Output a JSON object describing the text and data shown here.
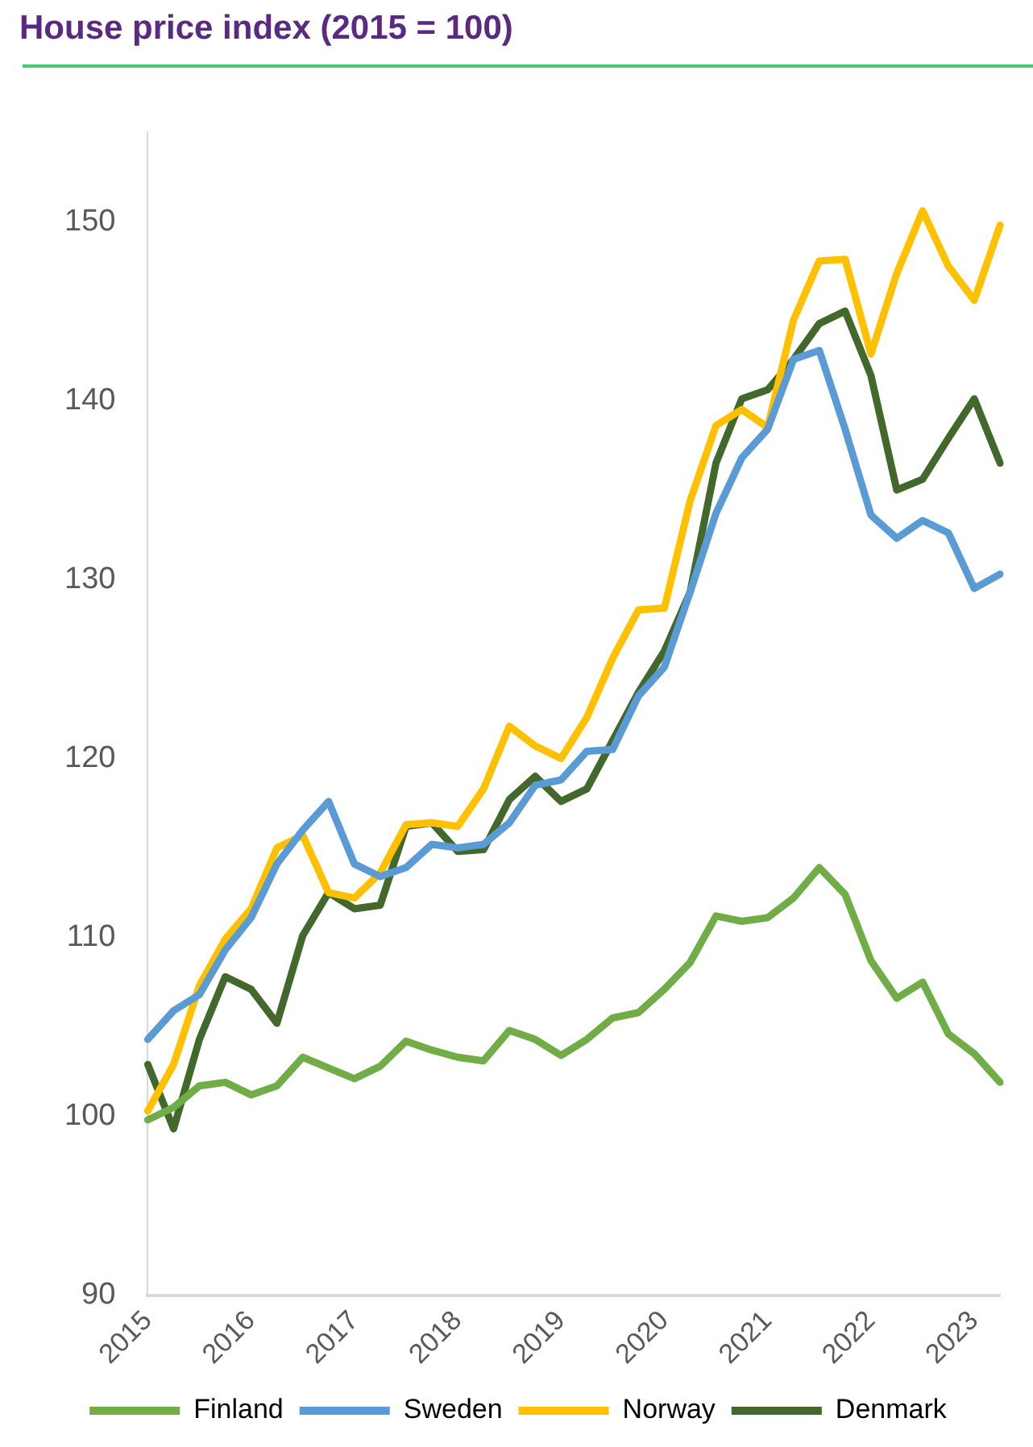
{
  "chart_data": {
    "type": "line",
    "title": "House price index (2015 = 100)",
    "categories": [
      "2015",
      null,
      null,
      null,
      "2016",
      null,
      null,
      null,
      "2017",
      null,
      null,
      null,
      "2018",
      null,
      null,
      null,
      "2019",
      null,
      null,
      null,
      "2020",
      null,
      null,
      null,
      "2021",
      null,
      null,
      null,
      "2022",
      null,
      null,
      null,
      "2023",
      null
    ],
    "series": [
      {
        "name": "Finland",
        "color": "#70ad47",
        "values": [
          99.8,
          100.5,
          101.7,
          101.9,
          101.2,
          101.7,
          103.3,
          102.7,
          102.1,
          102.8,
          104.2,
          103.7,
          103.3,
          103.1,
          104.8,
          104.3,
          103.4,
          104.3,
          105.5,
          105.8,
          107.1,
          108.6,
          111.2,
          110.9,
          111.1,
          112.2,
          113.9,
          112.4,
          108.7,
          106.6,
          107.5,
          104.6,
          103.5,
          101.9
        ]
      },
      {
        "name": "Sweden",
        "color": "#5b9bd5",
        "values": [
          104.3,
          105.9,
          106.8,
          109.3,
          111.1,
          114.1,
          116.0,
          117.6,
          114.1,
          113.4,
          113.9,
          115.2,
          115.0,
          115.2,
          116.4,
          118.5,
          118.8,
          120.4,
          120.5,
          123.5,
          125.1,
          129.3,
          133.7,
          136.8,
          138.4,
          142.3,
          142.8,
          138.4,
          133.6,
          132.3,
          133.3,
          132.6,
          129.5,
          130.3
        ]
      },
      {
        "name": "Norway",
        "color": "#ffc000",
        "values": [
          100.3,
          102.9,
          107.3,
          109.9,
          111.6,
          115.0,
          115.7,
          112.5,
          112.2,
          113.6,
          116.3,
          116.4,
          116.2,
          118.3,
          121.8,
          120.7,
          120.0,
          122.3,
          125.6,
          128.3,
          128.4,
          134.4,
          138.6,
          139.5,
          138.5,
          144.5,
          147.8,
          147.9,
          142.6,
          147.1,
          150.6,
          147.5,
          145.6,
          149.8
        ]
      },
      {
        "name": "Denmark",
        "color": "#43682b",
        "values": [
          102.9,
          99.3,
          104.3,
          107.8,
          107.1,
          105.2,
          110.1,
          112.5,
          111.6,
          111.8,
          116.2,
          116.4,
          114.8,
          114.9,
          117.7,
          119.0,
          117.6,
          118.3,
          121.0,
          123.7,
          126.0,
          129.3,
          136.5,
          140.1,
          140.6,
          142.3,
          144.3,
          145.0,
          141.4,
          135.0,
          135.6,
          137.9,
          140.1,
          136.5
        ]
      }
    ],
    "ylim": [
      90,
      155
    ],
    "yticks": [
      90,
      100,
      110,
      120,
      130,
      140,
      150
    ],
    "grid": false,
    "legend": "bottom",
    "marker": "none",
    "line_style": "solid"
  }
}
